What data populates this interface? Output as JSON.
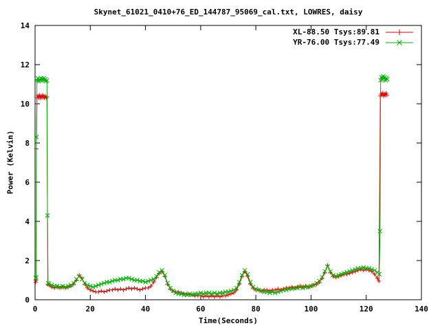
{
  "chart_data": {
    "type": "line",
    "title": "Skynet_61021_0410+76_ED_144787_95069_cal.txt, LOWRES, daisy",
    "xlabel": "Time(Seconds)",
    "ylabel": "Power (Kelvin)",
    "xlim": [
      0,
      140
    ],
    "ylim": [
      0,
      14
    ],
    "xticks": [
      0,
      20,
      40,
      60,
      80,
      100,
      120,
      140
    ],
    "yticks": [
      0,
      2,
      4,
      6,
      8,
      10,
      12,
      14
    ],
    "grid": false,
    "legend_position": "top-right-inside",
    "background": "#ffffff",
    "axis_color": "#000000",
    "series": [
      {
        "name": "XL-88.50 Tsys:89.81",
        "color": "#e60000",
        "marker": "plus",
        "style": "linespoints",
        "points": [
          [
            0.2,
            0.9
          ],
          [
            0.4,
            1.0
          ],
          [
            0.5,
            7.7
          ],
          [
            0.7,
            10.3
          ],
          [
            1.0,
            10.4
          ],
          [
            1.3,
            10.3
          ],
          [
            1.6,
            10.45
          ],
          [
            1.9,
            10.3
          ],
          [
            2.2,
            10.4
          ],
          [
            2.5,
            10.3
          ],
          [
            2.8,
            10.45
          ],
          [
            3.1,
            10.35
          ],
          [
            3.4,
            10.3
          ],
          [
            3.7,
            10.4
          ],
          [
            4.0,
            10.3
          ],
          [
            4.3,
            10.35
          ],
          [
            4.6,
            0.8
          ],
          [
            5,
            0.75
          ],
          [
            6,
            0.65
          ],
          [
            7,
            0.6
          ],
          [
            8,
            0.65
          ],
          [
            9,
            0.6
          ],
          [
            10,
            0.65
          ],
          [
            11,
            0.6
          ],
          [
            12,
            0.65
          ],
          [
            13,
            0.7
          ],
          [
            14,
            0.8
          ],
          [
            15,
            1.0
          ],
          [
            16,
            1.25
          ],
          [
            17,
            1.1
          ],
          [
            18,
            0.8
          ],
          [
            19,
            0.6
          ],
          [
            20,
            0.5
          ],
          [
            21,
            0.45
          ],
          [
            22,
            0.4
          ],
          [
            23,
            0.4
          ],
          [
            24,
            0.45
          ],
          [
            25,
            0.4
          ],
          [
            26,
            0.45
          ],
          [
            27,
            0.5
          ],
          [
            28,
            0.5
          ],
          [
            29,
            0.55
          ],
          [
            30,
            0.5
          ],
          [
            31,
            0.55
          ],
          [
            32,
            0.5
          ],
          [
            33,
            0.55
          ],
          [
            34,
            0.6
          ],
          [
            35,
            0.55
          ],
          [
            36,
            0.6
          ],
          [
            37,
            0.55
          ],
          [
            38,
            0.5
          ],
          [
            39,
            0.55
          ],
          [
            40,
            0.6
          ],
          [
            41,
            0.6
          ],
          [
            42,
            0.7
          ],
          [
            43,
            0.9
          ],
          [
            44,
            1.15
          ],
          [
            45,
            1.35
          ],
          [
            46,
            1.45
          ],
          [
            47,
            1.2
          ],
          [
            48,
            0.8
          ],
          [
            49,
            0.55
          ],
          [
            50,
            0.45
          ],
          [
            51,
            0.4
          ],
          [
            52,
            0.4
          ],
          [
            53,
            0.35
          ],
          [
            54,
            0.3
          ],
          [
            55,
            0.3
          ],
          [
            56,
            0.25
          ],
          [
            57,
            0.25
          ],
          [
            58,
            0.2
          ],
          [
            59,
            0.2
          ],
          [
            60,
            0.2
          ],
          [
            61,
            0.15
          ],
          [
            62,
            0.2
          ],
          [
            63,
            0.15
          ],
          [
            64,
            0.2
          ],
          [
            65,
            0.15
          ],
          [
            66,
            0.2
          ],
          [
            67,
            0.15
          ],
          [
            68,
            0.2
          ],
          [
            69,
            0.2
          ],
          [
            70,
            0.25
          ],
          [
            71,
            0.3
          ],
          [
            72,
            0.35
          ],
          [
            73,
            0.5
          ],
          [
            74,
            0.8
          ],
          [
            75,
            1.2
          ],
          [
            76,
            1.45
          ],
          [
            77,
            1.2
          ],
          [
            78,
            0.8
          ],
          [
            79,
            0.6
          ],
          [
            80,
            0.5
          ],
          [
            81,
            0.5
          ],
          [
            82,
            0.45
          ],
          [
            83,
            0.5
          ],
          [
            84,
            0.5
          ],
          [
            85,
            0.45
          ],
          [
            86,
            0.5
          ],
          [
            87,
            0.5
          ],
          [
            88,
            0.55
          ],
          [
            89,
            0.5
          ],
          [
            90,
            0.55
          ],
          [
            91,
            0.6
          ],
          [
            92,
            0.6
          ],
          [
            93,
            0.65
          ],
          [
            94,
            0.6
          ],
          [
            95,
            0.65
          ],
          [
            96,
            0.7
          ],
          [
            97,
            0.65
          ],
          [
            98,
            0.7
          ],
          [
            99,
            0.65
          ],
          [
            100,
            0.7
          ],
          [
            101,
            0.75
          ],
          [
            102,
            0.8
          ],
          [
            103,
            0.9
          ],
          [
            104,
            1.1
          ],
          [
            105,
            1.4
          ],
          [
            106,
            1.75
          ],
          [
            107,
            1.4
          ],
          [
            108,
            1.2
          ],
          [
            109,
            1.15
          ],
          [
            110,
            1.2
          ],
          [
            111,
            1.25
          ],
          [
            112,
            1.3
          ],
          [
            113,
            1.3
          ],
          [
            114,
            1.35
          ],
          [
            115,
            1.4
          ],
          [
            116,
            1.45
          ],
          [
            117,
            1.5
          ],
          [
            118,
            1.55
          ],
          [
            119,
            1.5
          ],
          [
            120,
            1.55
          ],
          [
            121,
            1.5
          ],
          [
            122,
            1.45
          ],
          [
            123,
            1.3
          ],
          [
            124,
            1.1
          ],
          [
            124.6,
            0.95
          ],
          [
            125.1,
            10.4
          ],
          [
            125.4,
            10.5
          ],
          [
            125.7,
            10.45
          ],
          [
            126.0,
            10.55
          ],
          [
            126.3,
            10.4
          ],
          [
            126.6,
            10.5
          ],
          [
            126.9,
            10.45
          ],
          [
            127.2,
            10.55
          ],
          [
            127.5,
            10.45
          ]
        ]
      },
      {
        "name": "YR-76.00 Tsys:77.49",
        "color": "#00b000",
        "marker": "cross",
        "style": "linespoints",
        "points": [
          [
            0.2,
            1.1
          ],
          [
            0.4,
            1.15
          ],
          [
            0.5,
            8.3
          ],
          [
            0.7,
            11.2
          ],
          [
            1.0,
            11.3
          ],
          [
            1.3,
            11.15
          ],
          [
            1.6,
            11.25
          ],
          [
            1.9,
            11.2
          ],
          [
            2.2,
            11.3
          ],
          [
            2.5,
            11.2
          ],
          [
            2.8,
            11.25
          ],
          [
            3.1,
            11.3
          ],
          [
            3.4,
            11.2
          ],
          [
            3.7,
            11.25
          ],
          [
            4.0,
            11.15
          ],
          [
            4.3,
            11.2
          ],
          [
            4.5,
            4.3
          ],
          [
            4.7,
            0.85
          ],
          [
            5,
            0.8
          ],
          [
            6,
            0.75
          ],
          [
            7,
            0.7
          ],
          [
            8,
            0.7
          ],
          [
            9,
            0.65
          ],
          [
            10,
            0.7
          ],
          [
            11,
            0.65
          ],
          [
            12,
            0.7
          ],
          [
            13,
            0.75
          ],
          [
            14,
            0.85
          ],
          [
            15,
            1.05
          ],
          [
            16,
            1.2
          ],
          [
            17,
            1.05
          ],
          [
            18,
            0.85
          ],
          [
            19,
            0.75
          ],
          [
            20,
            0.7
          ],
          [
            21,
            0.65
          ],
          [
            22,
            0.7
          ],
          [
            23,
            0.75
          ],
          [
            24,
            0.8
          ],
          [
            25,
            0.85
          ],
          [
            26,
            0.9
          ],
          [
            27,
            0.9
          ],
          [
            28,
            0.95
          ],
          [
            29,
            1.0
          ],
          [
            30,
            1.0
          ],
          [
            31,
            1.05
          ],
          [
            32,
            1.05
          ],
          [
            33,
            1.1
          ],
          [
            34,
            1.1
          ],
          [
            35,
            1.05
          ],
          [
            36,
            1.0
          ],
          [
            37,
            1.0
          ],
          [
            38,
            0.95
          ],
          [
            39,
            0.95
          ],
          [
            40,
            0.9
          ],
          [
            41,
            0.95
          ],
          [
            42,
            1.0
          ],
          [
            43,
            1.05
          ],
          [
            44,
            1.2
          ],
          [
            45,
            1.4
          ],
          [
            46,
            1.5
          ],
          [
            47,
            1.25
          ],
          [
            48,
            0.85
          ],
          [
            49,
            0.6
          ],
          [
            50,
            0.45
          ],
          [
            51,
            0.35
          ],
          [
            52,
            0.3
          ],
          [
            53,
            0.3
          ],
          [
            54,
            0.25
          ],
          [
            55,
            0.25
          ],
          [
            56,
            0.3
          ],
          [
            57,
            0.25
          ],
          [
            58,
            0.3
          ],
          [
            59,
            0.3
          ],
          [
            60,
            0.35
          ],
          [
            61,
            0.3
          ],
          [
            62,
            0.35
          ],
          [
            63,
            0.35
          ],
          [
            64,
            0.3
          ],
          [
            65,
            0.35
          ],
          [
            66,
            0.3
          ],
          [
            67,
            0.35
          ],
          [
            68,
            0.35
          ],
          [
            69,
            0.4
          ],
          [
            70,
            0.4
          ],
          [
            71,
            0.45
          ],
          [
            72,
            0.5
          ],
          [
            73,
            0.6
          ],
          [
            74,
            0.9
          ],
          [
            75,
            1.25
          ],
          [
            76,
            1.5
          ],
          [
            77,
            1.3
          ],
          [
            78,
            0.9
          ],
          [
            79,
            0.65
          ],
          [
            80,
            0.55
          ],
          [
            81,
            0.5
          ],
          [
            82,
            0.45
          ],
          [
            83,
            0.4
          ],
          [
            84,
            0.4
          ],
          [
            85,
            0.35
          ],
          [
            86,
            0.4
          ],
          [
            87,
            0.35
          ],
          [
            88,
            0.4
          ],
          [
            89,
            0.45
          ],
          [
            90,
            0.5
          ],
          [
            91,
            0.5
          ],
          [
            92,
            0.55
          ],
          [
            93,
            0.55
          ],
          [
            94,
            0.6
          ],
          [
            95,
            0.6
          ],
          [
            96,
            0.65
          ],
          [
            97,
            0.6
          ],
          [
            98,
            0.65
          ],
          [
            99,
            0.65
          ],
          [
            100,
            0.7
          ],
          [
            101,
            0.75
          ],
          [
            102,
            0.85
          ],
          [
            103,
            0.95
          ],
          [
            104,
            1.15
          ],
          [
            105,
            1.45
          ],
          [
            106,
            1.7
          ],
          [
            107,
            1.45
          ],
          [
            108,
            1.25
          ],
          [
            109,
            1.2
          ],
          [
            110,
            1.25
          ],
          [
            111,
            1.3
          ],
          [
            112,
            1.35
          ],
          [
            113,
            1.4
          ],
          [
            114,
            1.45
          ],
          [
            115,
            1.5
          ],
          [
            116,
            1.55
          ],
          [
            117,
            1.6
          ],
          [
            118,
            1.6
          ],
          [
            119,
            1.65
          ],
          [
            120,
            1.6
          ],
          [
            121,
            1.6
          ],
          [
            122,
            1.55
          ],
          [
            123,
            1.5
          ],
          [
            124,
            1.4
          ],
          [
            124.7,
            1.3
          ],
          [
            125.0,
            3.5
          ],
          [
            125.2,
            11.2
          ],
          [
            125.5,
            11.35
          ],
          [
            125.8,
            11.25
          ],
          [
            126.1,
            11.4
          ],
          [
            126.4,
            11.3
          ],
          [
            126.7,
            11.35
          ],
          [
            127.0,
            11.2
          ],
          [
            127.3,
            11.3
          ],
          [
            127.6,
            11.25
          ]
        ]
      }
    ]
  }
}
